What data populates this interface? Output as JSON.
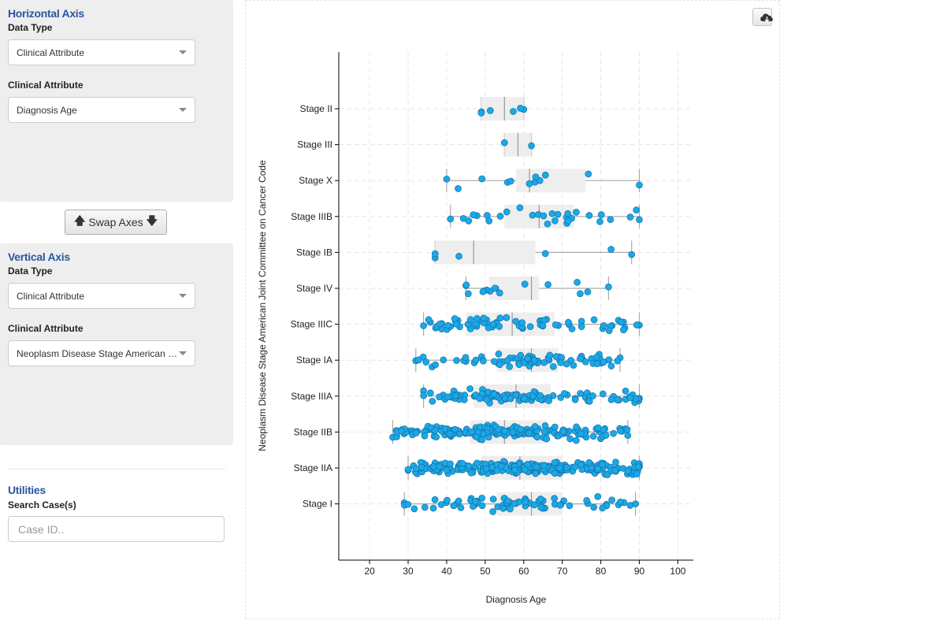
{
  "horizontal_axis": {
    "title": "Horizontal Axis",
    "data_type_label": "Data Type",
    "data_type_value": "Clinical Attribute",
    "attribute_label": "Clinical Attribute",
    "attribute_value": "Diagnosis Age"
  },
  "swap_button": {
    "label": "Swap Axes"
  },
  "vertical_axis": {
    "title": "Vertical Axis",
    "data_type_label": "Data Type",
    "data_type_value": "Clinical Attribute",
    "attribute_label": "Clinical Attribute",
    "attribute_value": "Neoplasm Disease Stage American J..."
  },
  "utilities": {
    "title": "Utilities",
    "search_label": "Search Case(s)",
    "search_placeholder": "Case ID.."
  },
  "icons": {
    "download": "cloud-download-icon",
    "swap_left": "arrow-up-icon",
    "swap_right": "arrow-down-icon"
  },
  "colors": {
    "point_fill": "#1aa9e6",
    "point_stroke": "#1470a8",
    "box_fill": "#eeeeee",
    "panel_title": "#2a56a0"
  },
  "chart_data": {
    "type": "box-scatter",
    "orientation": "horizontal",
    "xlabel": "Diagnosis Age",
    "ylabel": "Neoplasm Disease Stage American Joint Committee on Cancer Code",
    "xlim": [
      12,
      104
    ],
    "xticks": [
      20,
      30,
      40,
      50,
      60,
      70,
      80,
      90,
      100
    ],
    "grid": true,
    "categories": [
      "Stage II",
      "Stage III",
      "Stage X",
      "Stage IIIB",
      "Stage IB",
      "Stage IV",
      "Stage IIIC",
      "Stage IA",
      "Stage IIIA",
      "Stage IIB",
      "Stage IIA",
      "Stage I"
    ],
    "boxes": [
      {
        "category": "Stage II",
        "min": 49,
        "q1": 49,
        "median": 55,
        "q3": 60,
        "max": 60,
        "n": 6
      },
      {
        "category": "Stage III",
        "min": 55,
        "q1": 55,
        "median": 58.5,
        "q3": 62,
        "max": 62,
        "n": 2
      },
      {
        "category": "Stage X",
        "min": 40,
        "q1": 58,
        "median": 61.5,
        "q3": 76,
        "max": 90,
        "n": 12
      },
      {
        "category": "Stage IIIB",
        "min": 41,
        "q1": 55,
        "median": 64,
        "q3": 73,
        "max": 90,
        "n": 30
      },
      {
        "category": "Stage IB",
        "min": 37,
        "q1": 37,
        "median": 47,
        "q3": 63,
        "max": 88,
        "n": 6
      },
      {
        "category": "Stage IV",
        "min": 45,
        "q1": 51,
        "median": 62,
        "q3": 64,
        "max": 82,
        "n": 16
      },
      {
        "category": "Stage IIIC",
        "min": 34,
        "q1": 45,
        "median": 57,
        "q3": 68,
        "max": 90,
        "n": 70
      },
      {
        "category": "Stage IA",
        "min": 32,
        "q1": 53,
        "median": 62,
        "q3": 69,
        "max": 85,
        "n": 80
      },
      {
        "category": "Stage IIIA",
        "min": 34,
        "q1": 47,
        "median": 58,
        "q3": 67,
        "max": 90,
        "n": 110
      },
      {
        "category": "Stage IIB",
        "min": 26,
        "q1": 46,
        "median": 55,
        "q3": 66,
        "max": 87,
        "n": 190
      },
      {
        "category": "Stage IIA",
        "min": 30,
        "q1": 49,
        "median": 59,
        "q3": 70,
        "max": 90,
        "n": 260
      },
      {
        "category": "Stage I",
        "min": 29,
        "q1": 53,
        "median": 62,
        "q3": 70,
        "max": 89,
        "n": 70
      }
    ]
  }
}
